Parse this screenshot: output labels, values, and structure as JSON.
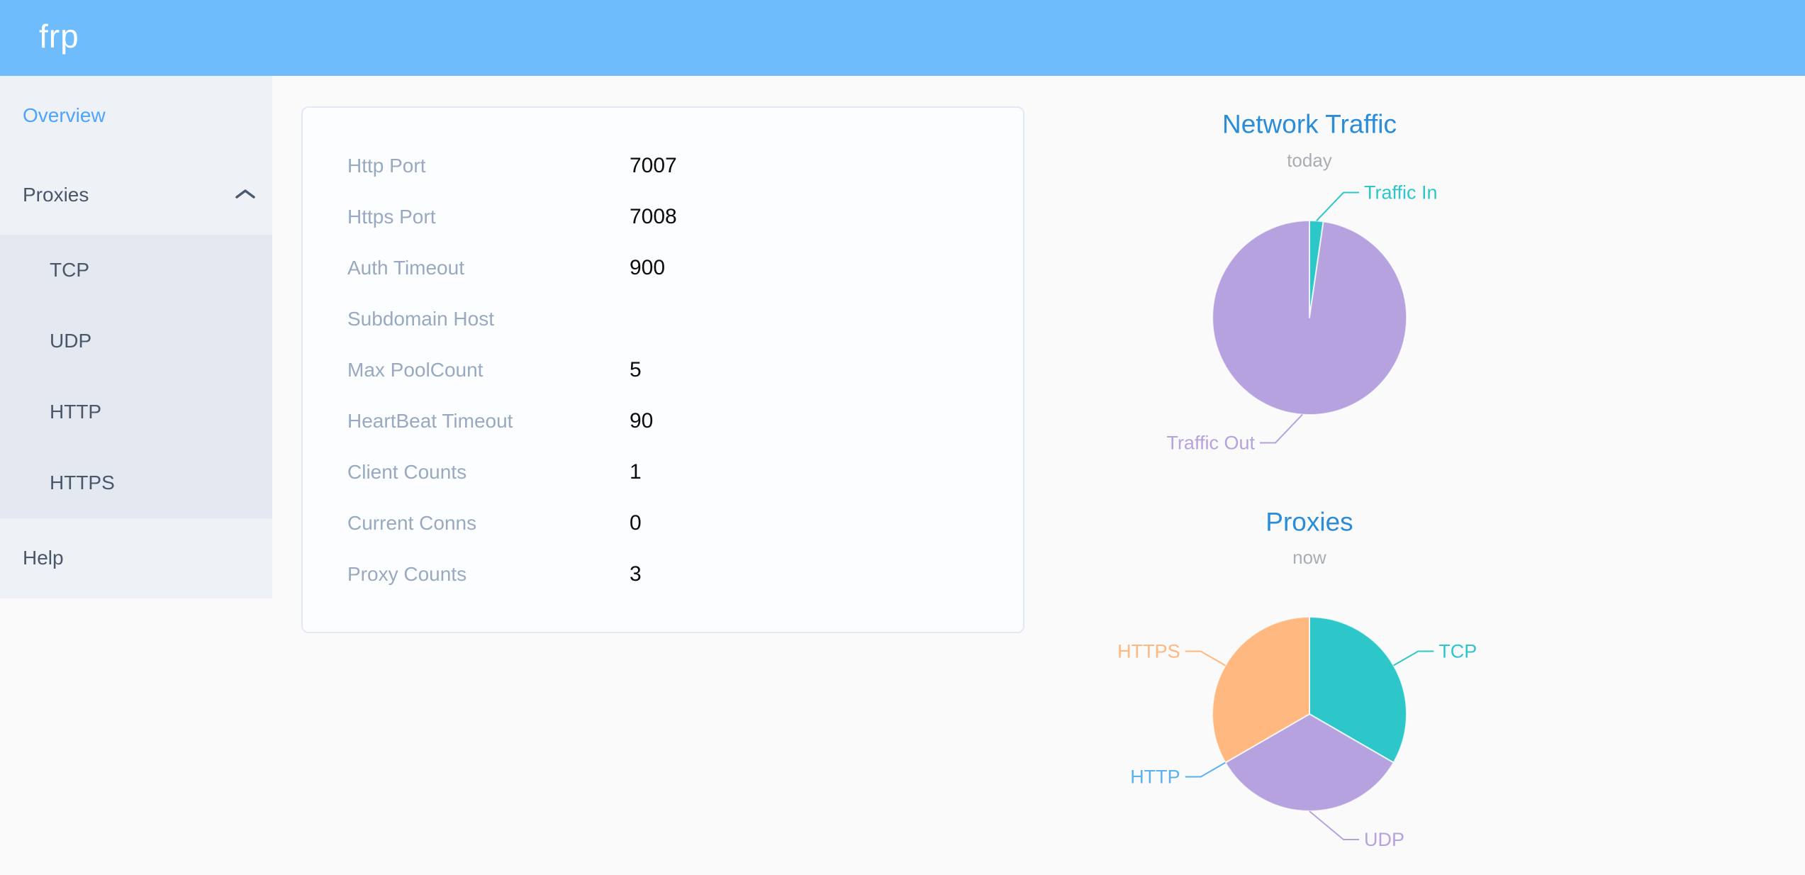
{
  "header": {
    "logo": "frp"
  },
  "colors": {
    "header_bg": "#6fbcfc",
    "sidebar_bg": "#eef1f6",
    "submenu_bg": "#e4e8f1",
    "menu_text": "#48576a",
    "active_menu_item": "#4da4fd",
    "chart_title": "#2b8cd8",
    "teal": "#2ec7c9",
    "purple": "#b6a2de",
    "blue": "#5ab1ef",
    "orange": "#ffb980"
  },
  "sidebar": {
    "items": [
      {
        "label": "Overview",
        "active": true
      },
      {
        "label": "Proxies",
        "expanded": true,
        "children": [
          "TCP",
          "UDP",
          "HTTP",
          "HTTPS"
        ]
      },
      {
        "label": "Help"
      }
    ]
  },
  "overview_card": {
    "rows": [
      {
        "label": "Http Port",
        "value": "7007"
      },
      {
        "label": "Https Port",
        "value": "7008"
      },
      {
        "label": "Auth Timeout",
        "value": "900"
      },
      {
        "label": "Subdomain Host",
        "value": ""
      },
      {
        "label": "Max PoolCount",
        "value": "5"
      },
      {
        "label": "HeartBeat Timeout",
        "value": "90"
      },
      {
        "label": "Client Counts",
        "value": "1"
      },
      {
        "label": "Current Conns",
        "value": "0"
      },
      {
        "label": "Proxy Counts",
        "value": "3"
      }
    ]
  },
  "chart_data": [
    {
      "type": "pie",
      "title": "Network Traffic",
      "subtitle": "today",
      "unit": "% of today's traffic (estimated from arc angles)",
      "start_angle": "top",
      "clockwise": true,
      "label_position": "outside",
      "legend": "none",
      "series": [
        {
          "name": "Traffic In",
          "value": 2.3,
          "color": "#2ec7c9"
        },
        {
          "name": "Traffic Out",
          "value": 97.7,
          "color": "#b6a2de"
        }
      ]
    },
    {
      "type": "pie",
      "title": "Proxies",
      "subtitle": "now",
      "unit": "proxy count",
      "start_angle": "top",
      "clockwise": true,
      "label_position": "outside",
      "legend": "none",
      "series": [
        {
          "name": "TCP",
          "value": 1,
          "color": "#2ec7c9"
        },
        {
          "name": "UDP",
          "value": 1,
          "color": "#b6a2de"
        },
        {
          "name": "HTTP",
          "value": 0,
          "color": "#5ab1ef"
        },
        {
          "name": "HTTPS",
          "value": 1,
          "color": "#ffb980"
        }
      ]
    }
  ]
}
